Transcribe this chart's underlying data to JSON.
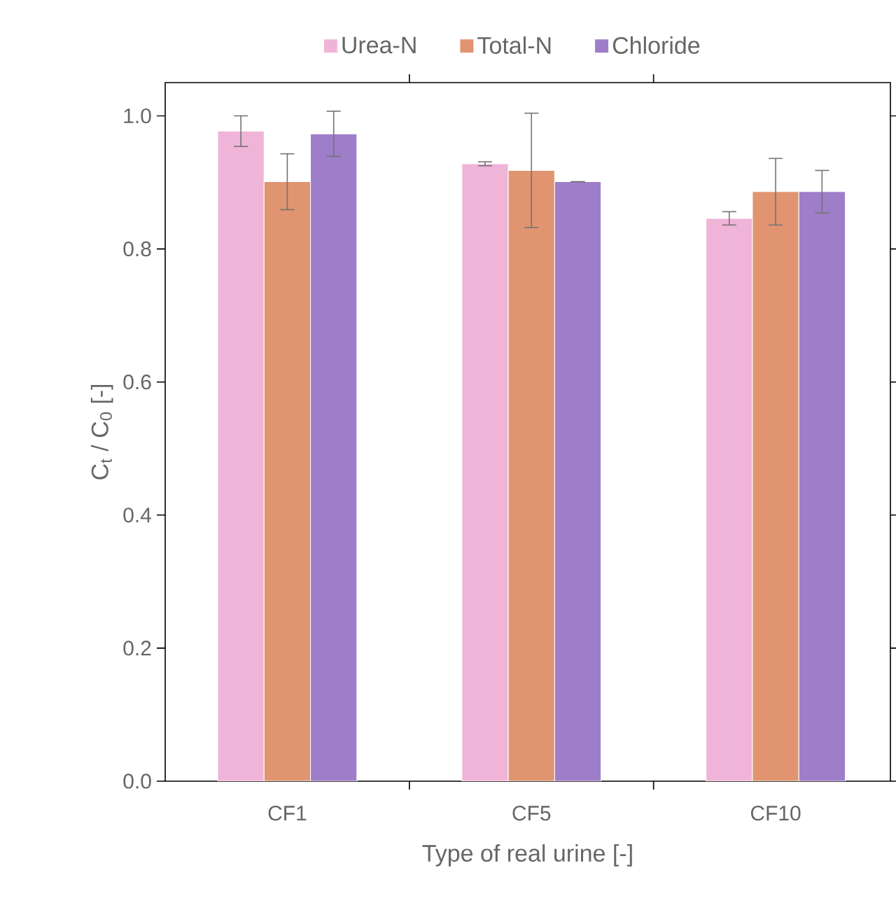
{
  "chart_data": {
    "type": "bar",
    "xlabel": "Type of real urine [-]",
    "ylabel": "C$_{t}$ / C$_{0}$ [-]",
    "categories": [
      "CF1",
      "CF5",
      "CF10"
    ],
    "series": [
      {
        "name": "Urea-N",
        "color": "#f0b4d8",
        "values": [
          0.977,
          0.928,
          0.846
        ],
        "errors": [
          0.023,
          0.003,
          0.01
        ]
      },
      {
        "name": "Total-N",
        "color": "#e09470",
        "values": [
          0.901,
          0.918,
          0.886
        ],
        "errors": [
          0.042,
          0.086,
          0.05
        ]
      },
      {
        "name": "Chloride",
        "color": "#9e7ec9",
        "values": [
          0.973,
          0.901,
          0.886
        ],
        "errors": [
          0.034,
          0,
          0.032
        ]
      }
    ],
    "ylim": [
      0,
      1.05
    ],
    "yticks": [
      {
        "value": 0,
        "label": "0.0"
      },
      {
        "value": 0.2,
        "label": "0.2"
      },
      {
        "value": 0.4,
        "label": "0.4"
      },
      {
        "value": 0.6,
        "label": "0.6"
      },
      {
        "value": 0.8,
        "label": "0.8"
      },
      {
        "value": 1,
        "label": "1.0"
      }
    ],
    "legend": "top",
    "grid": false
  }
}
